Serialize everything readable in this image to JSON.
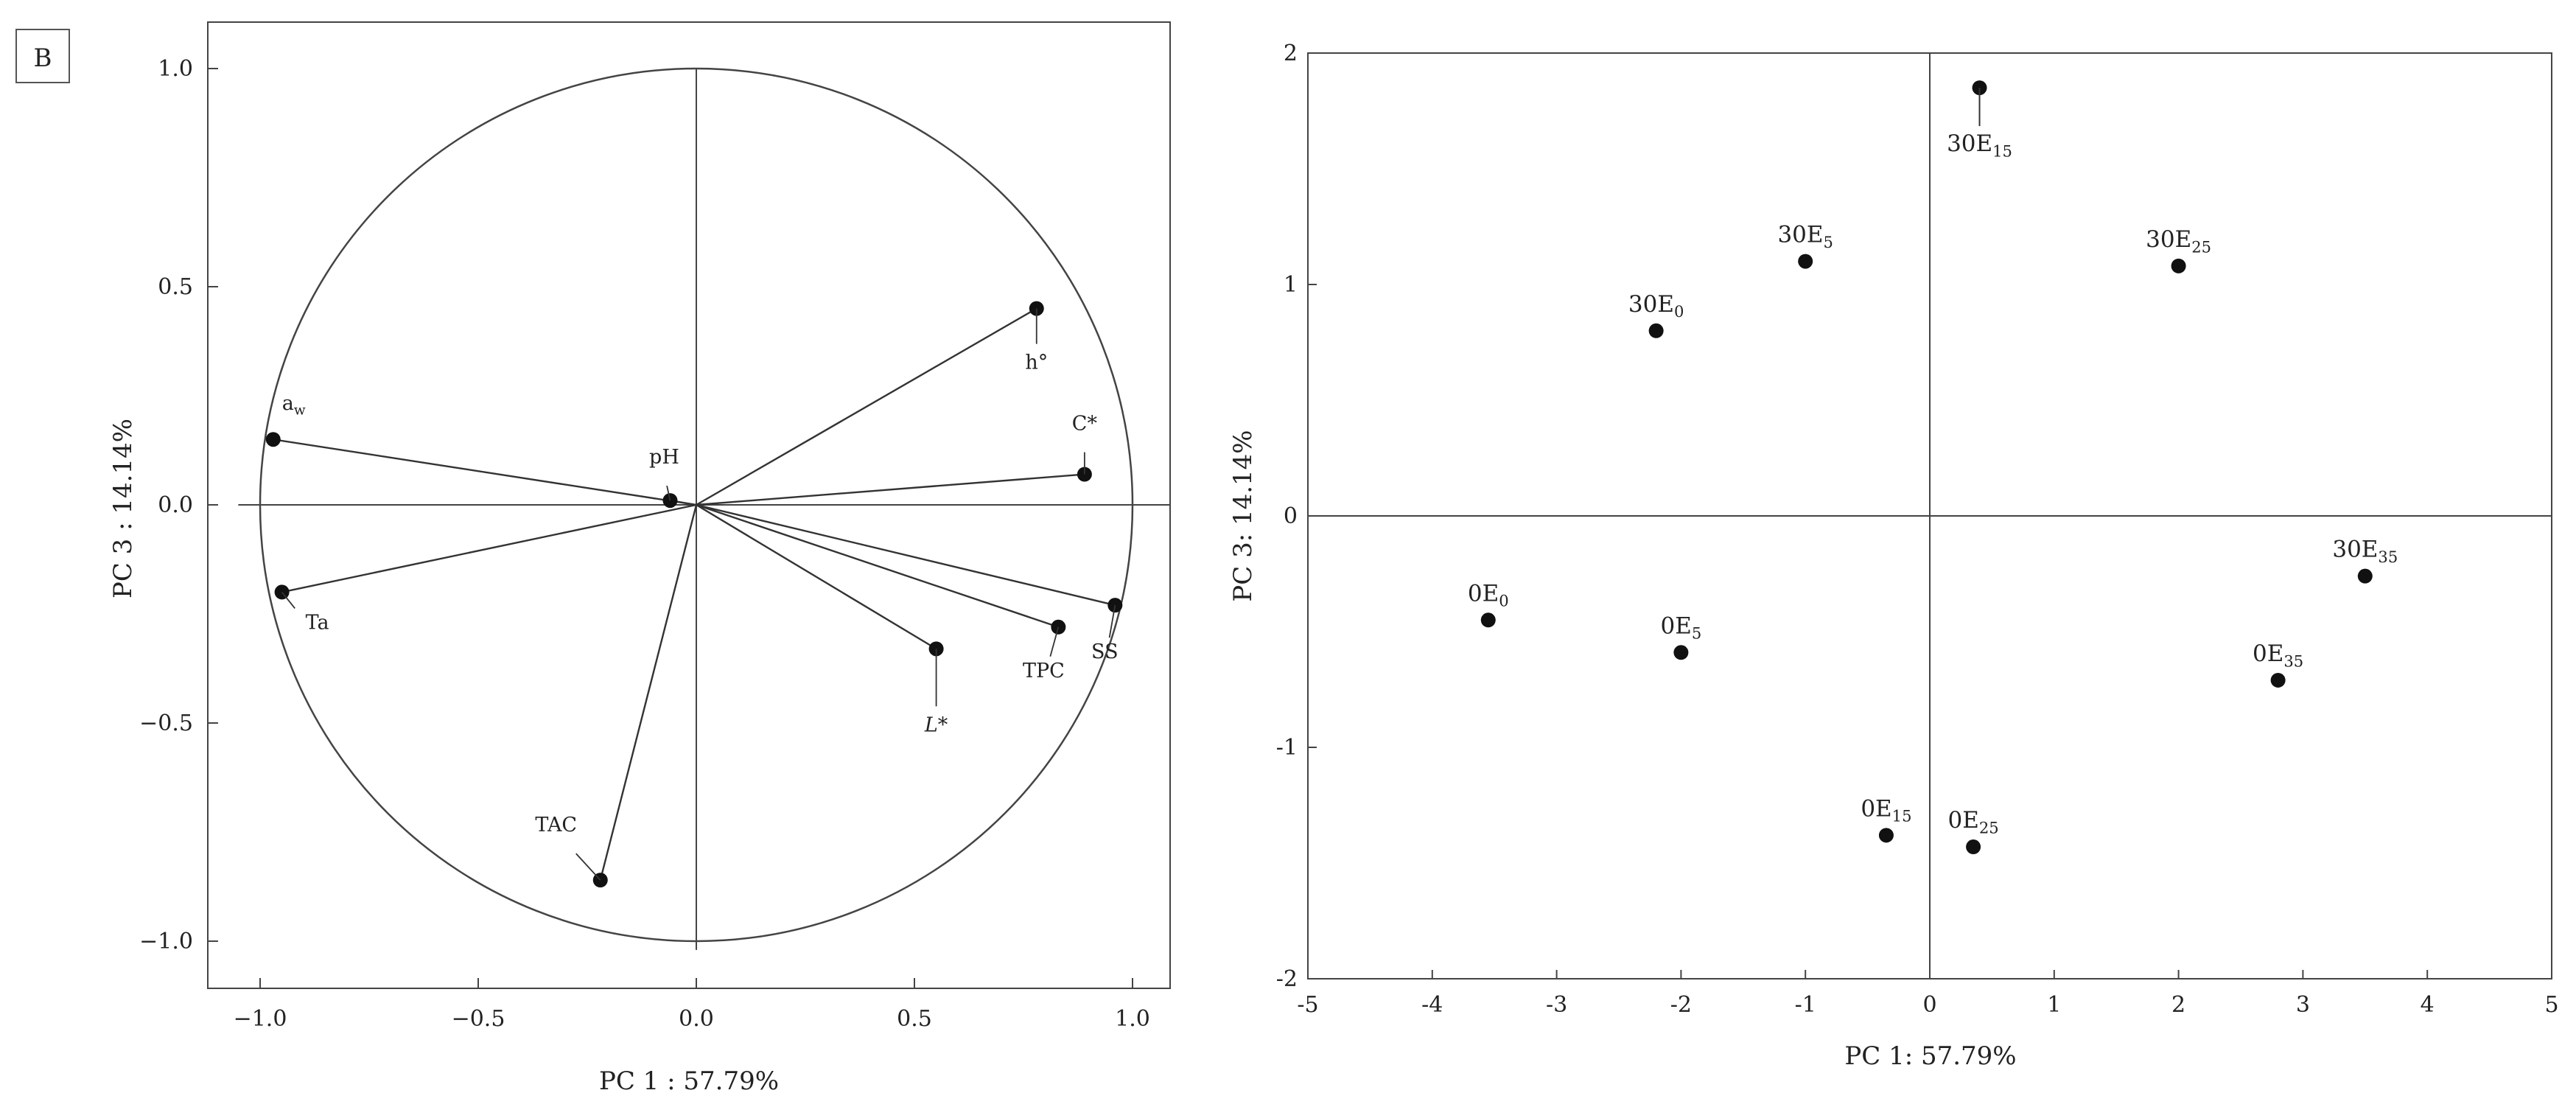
{
  "panel_label": "B",
  "chart_data": [
    {
      "type": "scatter",
      "subtype": "pca-loadings-circle",
      "xlabel": "PC 1 : 57.79%",
      "ylabel": "PC 3 : 14.14%",
      "xlim": [
        -1.1,
        1.1
      ],
      "ylim": [
        -1.1,
        1.1
      ],
      "xticks": [
        "−1.0",
        "−0.5",
        "0.0",
        "0.5",
        "1.0"
      ],
      "yticks": [
        "1.0",
        "0.5",
        "0.0",
        "−0.5",
        "−1.0"
      ],
      "reference_circle_radius": 1.0,
      "points": [
        {
          "label": "a",
          "sub": "w",
          "x": -0.97,
          "y": 0.15
        },
        {
          "label": "pH",
          "sub": "",
          "x": -0.06,
          "y": 0.01
        },
        {
          "label": "h°",
          "sub": "",
          "x": 0.78,
          "y": 0.45
        },
        {
          "label": "C*",
          "sub": "",
          "x": 0.89,
          "y": 0.07
        },
        {
          "label": "Ta",
          "sub": "",
          "x": -0.95,
          "y": -0.2
        },
        {
          "label": "SS",
          "sub": "",
          "x": 0.96,
          "y": -0.23
        },
        {
          "label": "TPC",
          "sub": "",
          "x": 0.83,
          "y": -0.28
        },
        {
          "label": "L*",
          "sub": "",
          "x": 0.55,
          "y": -0.33
        },
        {
          "label": "TAC",
          "sub": "",
          "x": -0.22,
          "y": -0.86
        }
      ]
    },
    {
      "type": "scatter",
      "subtype": "pca-scores",
      "xlabel": "PC 1: 57.79%",
      "ylabel": "PC 3: 14.14%",
      "xlim": [
        -5,
        5
      ],
      "ylim": [
        -2,
        2
      ],
      "xticks": [
        "-5",
        "-4",
        "-3",
        "-2",
        "-1",
        "0",
        "1",
        "2",
        "3",
        "4",
        "5"
      ],
      "yticks": [
        "2",
        "1",
        "0",
        "-1",
        "-2"
      ],
      "points": [
        {
          "label": "30E",
          "sub": "15",
          "x": 0.4,
          "y": 1.85
        },
        {
          "label": "30E",
          "sub": "5",
          "x": -1.0,
          "y": 1.1
        },
        {
          "label": "30E",
          "sub": "25",
          "x": 2.0,
          "y": 1.08
        },
        {
          "label": "30E",
          "sub": "0",
          "x": -2.2,
          "y": 0.8
        },
        {
          "label": "30E",
          "sub": "35",
          "x": 3.5,
          "y": -0.26
        },
        {
          "label": "0E",
          "sub": "0",
          "x": -3.55,
          "y": -0.45
        },
        {
          "label": "0E",
          "sub": "5",
          "x": -2.0,
          "y": -0.59
        },
        {
          "label": "0E",
          "sub": "35",
          "x": 2.8,
          "y": -0.71
        },
        {
          "label": "0E",
          "sub": "15",
          "x": -0.35,
          "y": -1.38
        },
        {
          "label": "0E",
          "sub": "25",
          "x": 0.35,
          "y": -1.43
        }
      ]
    }
  ]
}
